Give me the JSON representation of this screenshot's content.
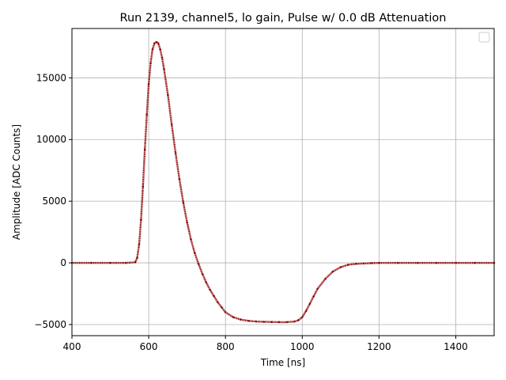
{
  "chart_data": {
    "type": "scatter",
    "title": "Run 2139, channel5, lo gain, Pulse w/ 0.0 dB Attenuation",
    "xlabel": "Time [ns]",
    "ylabel": "Amplitude [ADC Counts]",
    "xlim": [
      400,
      1500
    ],
    "ylim": [
      -5900,
      19000
    ],
    "xticks": [
      400,
      600,
      800,
      1000,
      1200,
      1400
    ],
    "yticks": [
      -5000,
      0,
      5000,
      10000,
      15000
    ],
    "ytick_labels": [
      "−5000",
      "0",
      "5000",
      "10000",
      "15000"
    ],
    "grid": true,
    "legend": "top-right",
    "colors": {
      "marker": "#8b0000",
      "grid": "#b0b0b0",
      "axes": "#000000"
    },
    "series": [
      {
        "x": [
          400,
          450,
          500,
          540,
          565,
          570,
          575,
          580,
          585,
          590,
          595,
          600,
          605,
          610,
          615,
          620,
          625,
          630,
          635,
          640,
          650,
          660,
          670,
          680,
          690,
          700,
          710,
          720,
          730,
          740,
          750,
          760,
          770,
          780,
          790,
          800,
          820,
          840,
          860,
          880,
          900,
          920,
          940,
          960,
          980,
          990,
          1000,
          1010,
          1020,
          1030,
          1040,
          1060,
          1080,
          1100,
          1120,
          1140,
          1160,
          1180,
          1200,
          1250,
          1300,
          1350,
          1400,
          1450,
          1500
        ],
        "y": [
          0,
          0,
          0,
          0,
          50,
          400,
          1500,
          3500,
          6200,
          9200,
          12000,
          14500,
          16200,
          17300,
          17800,
          17900,
          17800,
          17300,
          16600,
          15700,
          13600,
          11200,
          8900,
          6800,
          4900,
          3300,
          1900,
          800,
          -100,
          -900,
          -1600,
          -2200,
          -2700,
          -3200,
          -3600,
          -4000,
          -4400,
          -4600,
          -4700,
          -4750,
          -4780,
          -4790,
          -4800,
          -4800,
          -4750,
          -4650,
          -4400,
          -3900,
          -3300,
          -2700,
          -2100,
          -1300,
          -700,
          -350,
          -150,
          -80,
          -50,
          -20,
          0,
          0,
          0,
          0,
          0,
          0,
          0
        ]
      }
    ]
  }
}
